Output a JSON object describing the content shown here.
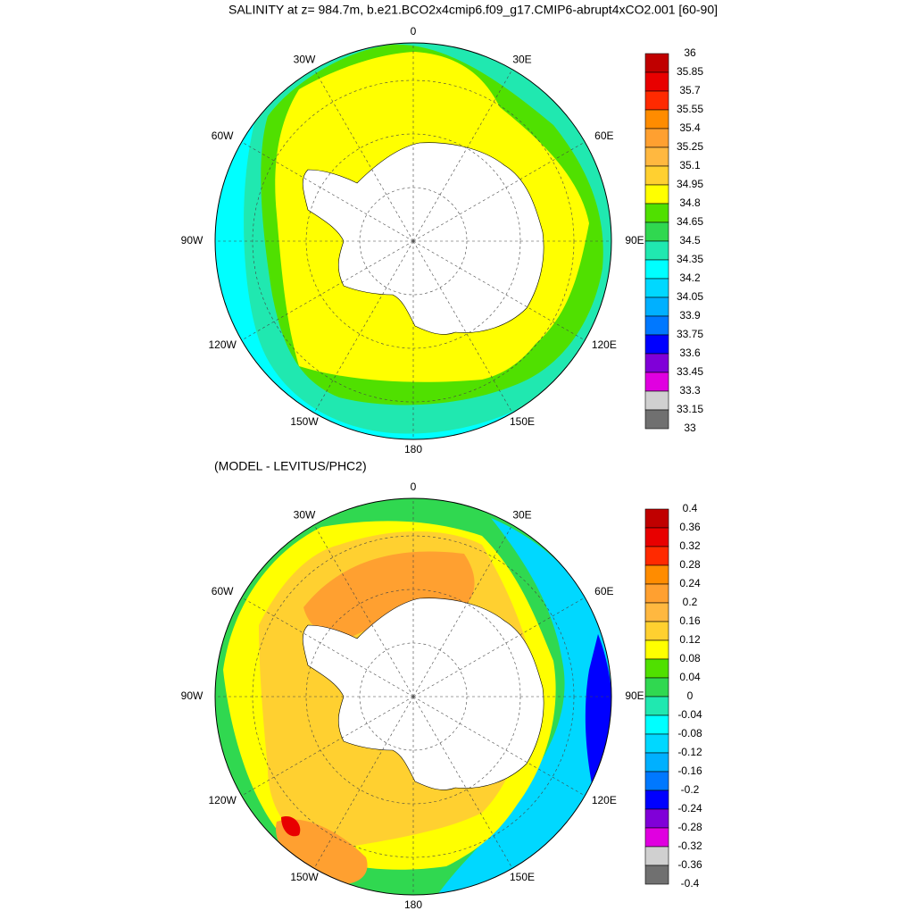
{
  "title": "SALINITY at z= 984.7m, b.e21.BCO2x4cmip6.f09_g17.CMIP6-abrupt4xCO2.001 [60-90]",
  "subtitle": "(MODEL - LEVITUS/PHC2)",
  "lon_labels": [
    "0",
    "30E",
    "60E",
    "90E",
    "120E",
    "150E",
    "180",
    "150W",
    "120W",
    "90W",
    "60W",
    "30W"
  ],
  "colorbars": [
    {
      "labels": [
        "36",
        "35.85",
        "35.7",
        "35.55",
        "35.4",
        "35.25",
        "35.1",
        "34.95",
        "34.8",
        "34.65",
        "34.5",
        "34.35",
        "34.2",
        "34.05",
        "33.9",
        "33.75",
        "33.6",
        "33.45",
        "33.3",
        "33.15",
        "33"
      ]
    },
    {
      "labels": [
        "0.4",
        "0.36",
        "0.32",
        "0.28",
        "0.24",
        "0.2",
        "0.16",
        "0.12",
        "0.08",
        "0.04",
        "0",
        "-0.04",
        "-0.08",
        "-0.12",
        "-0.16",
        "-0.2",
        "-0.24",
        "-0.28",
        "-0.32",
        "-0.36",
        "-0.4"
      ]
    }
  ],
  "palette": [
    "#c00000",
    "#e80000",
    "#ff2a00",
    "#ff8c00",
    "#ffa030",
    "#ffb840",
    "#ffd030",
    "#ffff00",
    "#50e000",
    "#30d850",
    "#20e8b0",
    "#00ffff",
    "#00d8ff",
    "#00b0ff",
    "#0078ff",
    "#0000ff",
    "#8000d8",
    "#e000e0",
    "#d0d0d0",
    "#707070"
  ]
}
